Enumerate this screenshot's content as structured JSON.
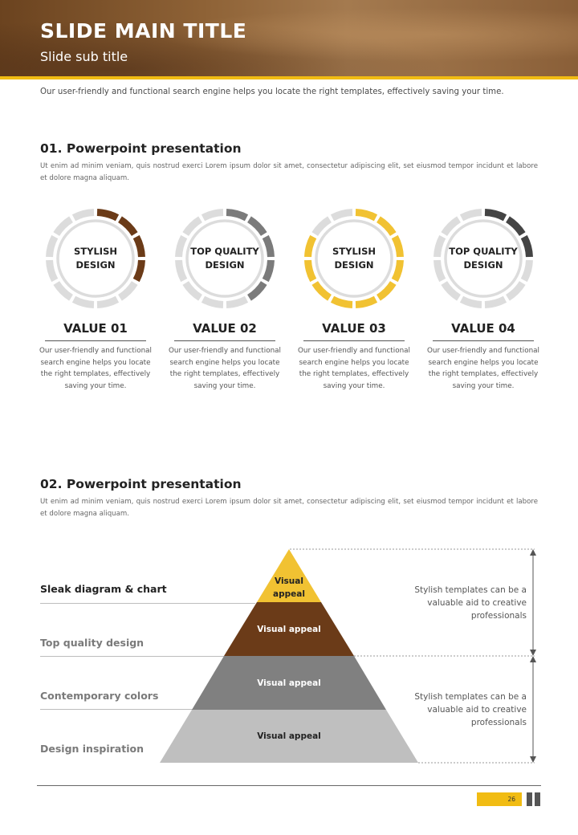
{
  "header": {
    "title": "SLIDE MAIN TITLE",
    "subtitle": "Slide sub title"
  },
  "intro": "Our user-friendly and functional search engine helps you locate the right templates, effectively saving your time.",
  "section1": {
    "title": "01. Powerpoint presentation",
    "text": "Ut enim ad minim veniam, quis nostrud exerci  Lorem ipsum dolor sit amet, consectetur adipiscing elit, set eiusmod tempor incidunt et labore et dolore magna aliquam.",
    "cards": [
      {
        "ring_text": "STYLISH DESIGN",
        "value": "VALUE 01",
        "desc": "Our user-friendly and functional search engine helps you locate the right templates, effectively saving your time.",
        "color": "#6b3b18",
        "filled_segments": 4
      },
      {
        "ring_text": "TOP QUALITY DESIGN",
        "value": "VALUE 02",
        "desc": "Our user-friendly and functional search engine helps you locate the right templates, effectively saving your time.",
        "color": "#7b7b7b",
        "filled_segments": 5
      },
      {
        "ring_text": "STYLISH DESIGN",
        "value": "VALUE 03",
        "desc": "Our user-friendly and functional search engine helps you locate the right templates, effectively saving your time.",
        "color": "#f1c232",
        "filled_segments": 10
      },
      {
        "ring_text": "TOP QUALITY DESIGN",
        "value": "VALUE 04",
        "desc": "Our user-friendly and functional search engine helps you locate the right templates, effectively saving your time.",
        "color": "#444444",
        "filled_segments": 3
      }
    ]
  },
  "section2": {
    "title": "02. Powerpoint presentation",
    "text": "Ut enim ad minim veniam, quis nostrud exerci  Lorem ipsum dolor sit amet, consectetur adipiscing elit, set eiusmod tempor incidunt et labore et dolore magna aliquam.",
    "labels": [
      "Sleak diagram & chart",
      "Top quality design",
      "Contemporary colors",
      "Design inspiration"
    ],
    "pyramid": [
      {
        "label": "Visual appeal",
        "color": "#f1c232"
      },
      {
        "label": "Visual appeal",
        "color": "#6b3b18"
      },
      {
        "label": "Visual appeal",
        "color": "#808080"
      },
      {
        "label": "Visual appeal",
        "color": "#bfbfbf"
      }
    ],
    "notes": [
      "Stylish templates can be a valuable aid to creative professionals",
      "Stylish templates can be a valuable aid to creative professionals"
    ]
  },
  "footer": {
    "page": "26"
  },
  "colors": {
    "accent": "#f1bc13",
    "brown": "#6b3b18",
    "track": "#dcdcdc"
  }
}
